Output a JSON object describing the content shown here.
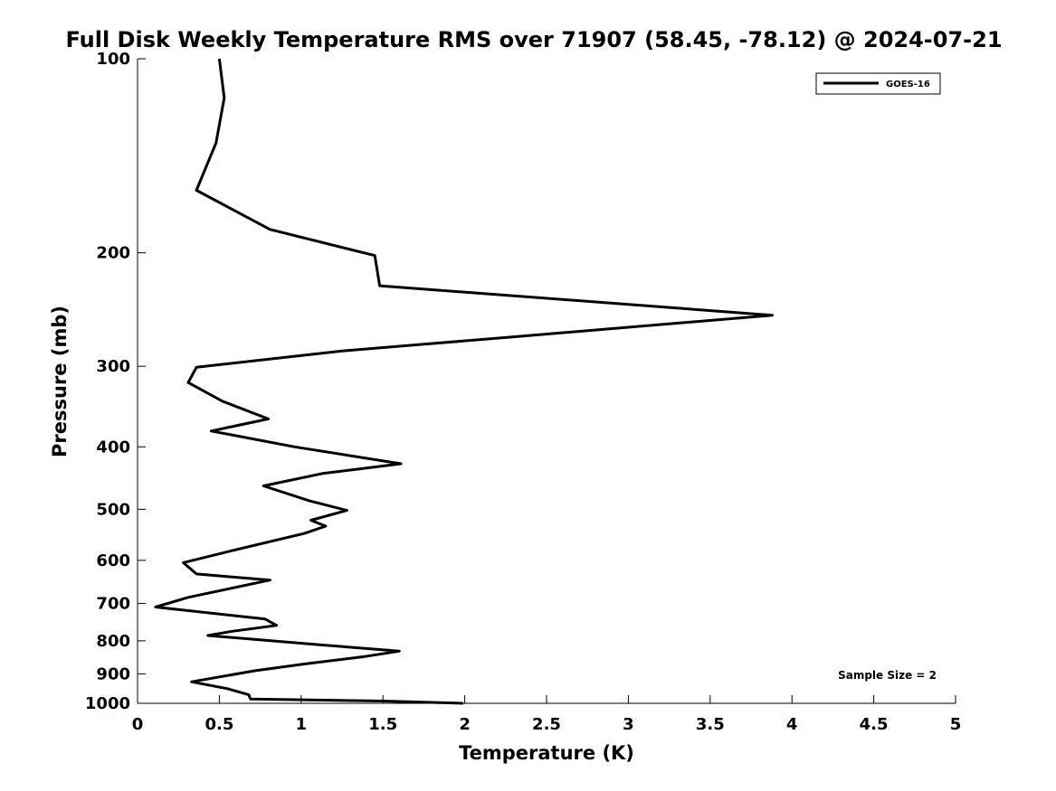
{
  "chart_data": {
    "type": "line",
    "title": "Full Disk Weekly Temperature RMS over 71907 (58.45, -78.12) @ 2024-07-21",
    "xlabel": "Temperature (K)",
    "ylabel": "Pressure (mb)",
    "xlim": [
      0,
      5
    ],
    "ylim": [
      100,
      1000
    ],
    "yscale": "log",
    "yreversed": true,
    "x_ticks": [
      "0",
      "0.5",
      "1",
      "1.5",
      "2",
      "2.5",
      "3",
      "3.5",
      "4",
      "4.5",
      "5"
    ],
    "x_tick_values": [
      0,
      0.5,
      1,
      1.5,
      2,
      2.5,
      3,
      3.5,
      4,
      4.5,
      5
    ],
    "y_ticks": [
      "100",
      "200",
      "300",
      "400",
      "500",
      "600",
      "700",
      "800",
      "900",
      "1000"
    ],
    "y_tick_values": [
      100,
      200,
      300,
      400,
      500,
      600,
      700,
      800,
      900,
      1000
    ],
    "grid": false,
    "legend_position": "top-right",
    "series": [
      {
        "name": "GOES-16",
        "color": "#000000",
        "points": [
          [
            0.5,
            100
          ],
          [
            0.53,
            115
          ],
          [
            0.48,
            135
          ],
          [
            0.36,
            160
          ],
          [
            0.81,
            184
          ],
          [
            1.45,
            202
          ],
          [
            1.48,
            225
          ],
          [
            3.88,
            250
          ],
          [
            2.3,
            270
          ],
          [
            1.25,
            284
          ],
          [
            0.36,
            301
          ],
          [
            0.31,
            318
          ],
          [
            0.52,
            340
          ],
          [
            0.8,
            362
          ],
          [
            0.45,
            378
          ],
          [
            0.96,
            400
          ],
          [
            1.61,
            425
          ],
          [
            1.13,
            440
          ],
          [
            0.77,
            460
          ],
          [
            1.05,
            485
          ],
          [
            1.28,
            502
          ],
          [
            1.06,
            520
          ],
          [
            1.15,
            531
          ],
          [
            1.02,
            545
          ],
          [
            0.56,
            581
          ],
          [
            0.28,
            605
          ],
          [
            0.36,
            630
          ],
          [
            0.81,
            644
          ],
          [
            0.31,
            685
          ],
          [
            0.11,
            709
          ],
          [
            0.78,
            740
          ],
          [
            0.85,
            757
          ],
          [
            0.58,
            773
          ],
          [
            0.43,
            785
          ],
          [
            1.13,
            812
          ],
          [
            1.6,
            830
          ],
          [
            1.39,
            846
          ],
          [
            1.02,
            869
          ],
          [
            0.72,
            890
          ],
          [
            0.33,
            926
          ],
          [
            0.55,
            949
          ],
          [
            0.68,
            970
          ],
          [
            0.69,
            985
          ],
          [
            1.5,
            992
          ],
          [
            1.99,
            1000
          ]
        ]
      }
    ],
    "annotation": "Sample Size = 2"
  }
}
